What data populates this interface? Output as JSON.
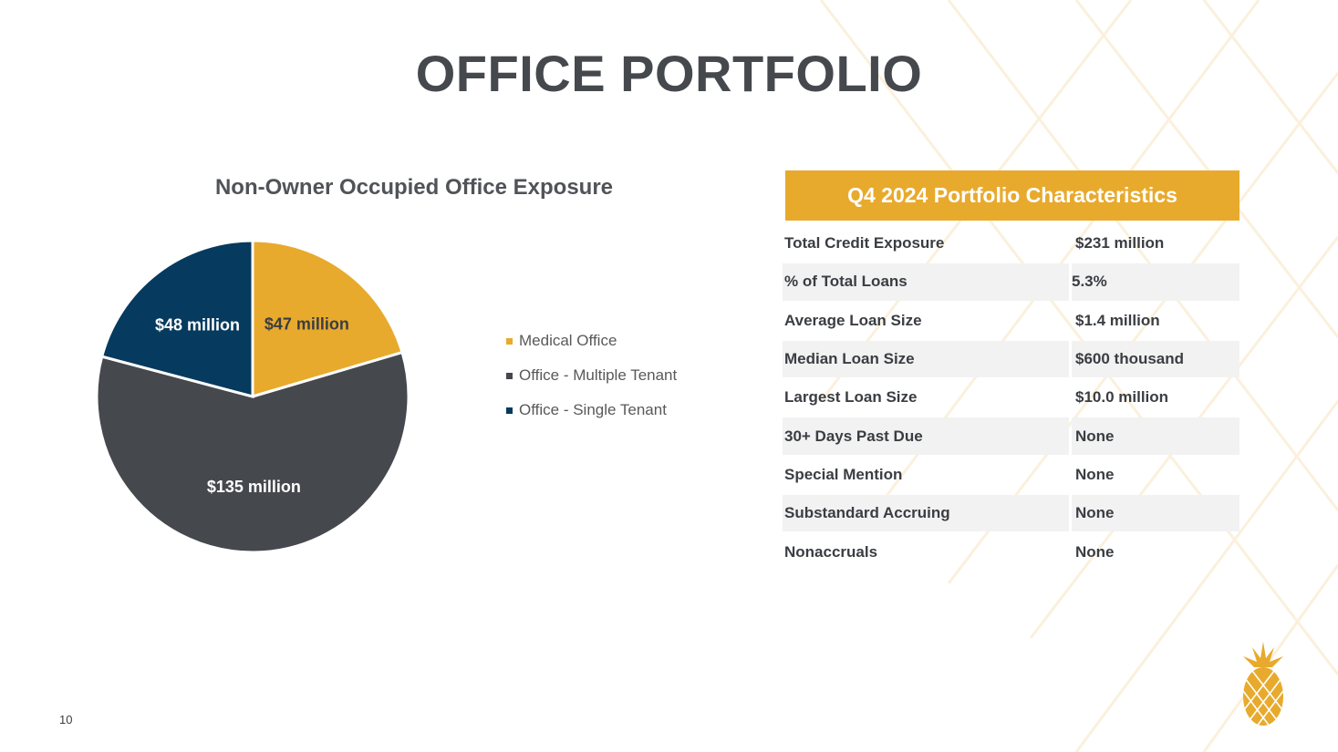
{
  "title": "OFFICE PORTFOLIO",
  "page_number": "10",
  "logo_icon": "pineapple-icon",
  "colors": {
    "accent": "#e8aa2d",
    "dark_gray": "#45484d",
    "navy": "#063a5e",
    "row_shade": "#f2f2f2"
  },
  "chart_data": {
    "type": "pie",
    "title": "Non-Owner Occupied Office Exposure",
    "slices": [
      {
        "name": "Medical Office",
        "value": 47,
        "label": "$47 million",
        "color": "#e8aa2d",
        "label_color": "#3a3d42"
      },
      {
        "name": "Office - Multiple Tenant",
        "value": 135,
        "label": "$135 million",
        "color": "#45484d",
        "label_color": "#ffffff"
      },
      {
        "name": "Office - Single Tenant",
        "value": 48,
        "label": "$48 million",
        "color": "#063a5e",
        "label_color": "#ffffff"
      }
    ],
    "legend_position": "right"
  },
  "table": {
    "title": "Q4 2024 Portfolio Characteristics",
    "rows": [
      {
        "label": "Total Credit Exposure",
        "value": "$231 million"
      },
      {
        "label": "% of Total Loans",
        "value": "5.3%"
      },
      {
        "label": "Average Loan Size",
        "value": "$1.4 million"
      },
      {
        "label": "Median Loan Size",
        "value": "$600 thousand"
      },
      {
        "label": "Largest Loan Size",
        "value": "$10.0 million"
      },
      {
        "label": "30+ Days Past Due",
        "value": "None"
      },
      {
        "label": "Special Mention",
        "value": "None"
      },
      {
        "label": "Substandard Accruing",
        "value": "None"
      },
      {
        "label": "Nonaccruals",
        "value": "None"
      }
    ]
  }
}
